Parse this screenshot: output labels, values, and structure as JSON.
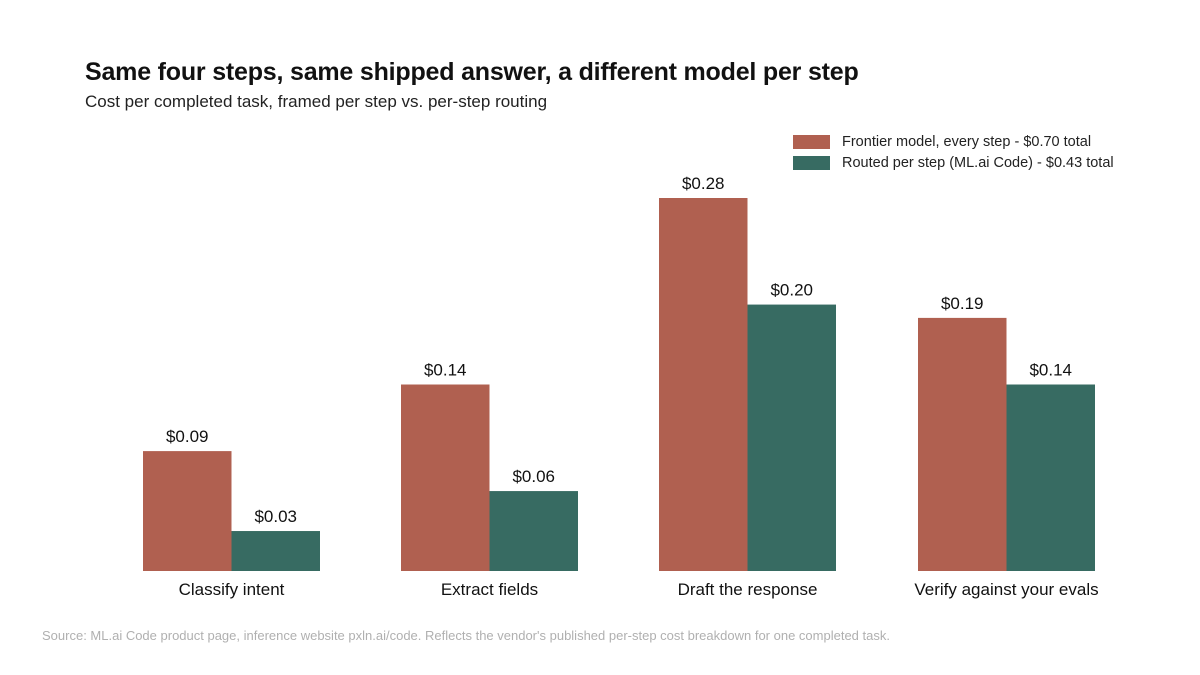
{
  "title": "Same four steps, same shipped answer, a different model per step",
  "subtitle": "Cost per completed task, framed per step vs. per-step routing",
  "source": "Source: ML.ai Code product page, inference website pxln.ai/code. Reflects the vendor's published per-step cost breakdown for one completed task.",
  "colors": {
    "frontier": "#B06050",
    "routed": "#376B62"
  },
  "chart_data": {
    "type": "bar",
    "categories": [
      "Classify intent",
      "Extract fields",
      "Draft the response",
      "Verify against your evals"
    ],
    "series": [
      {
        "name": "Frontier model, every step - $0.70 total",
        "values": [
          0.09,
          0.14,
          0.28,
          0.19
        ],
        "labels": [
          "$0.09",
          "$0.14",
          "$0.28",
          "$0.19"
        ]
      },
      {
        "name": "Routed per step (ML.ai Code) - $0.43 total",
        "values": [
          0.03,
          0.06,
          0.2,
          0.14
        ],
        "labels": [
          "$0.03",
          "$0.06",
          "$0.20",
          "$0.14"
        ]
      }
    ],
    "ylim": [
      0,
      0.28
    ],
    "grid": false,
    "legend": "top-right"
  }
}
